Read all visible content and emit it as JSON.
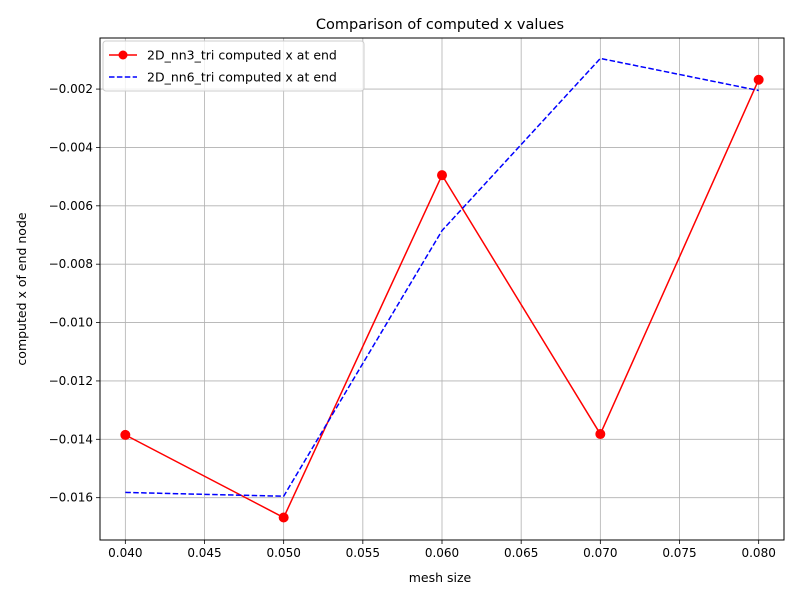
{
  "chart_data": {
    "type": "line",
    "title": "Comparison of computed x values",
    "xlabel": "mesh size",
    "ylabel": "computed x of end node",
    "x": [
      0.04,
      0.05,
      0.06,
      0.07,
      0.08
    ],
    "xlim": [
      0.0384,
      0.0816
    ],
    "ylim": [
      -0.01745,
      -0.00025
    ],
    "x_ticks": [
      "0.040",
      "0.045",
      "0.050",
      "0.055",
      "0.060",
      "0.065",
      "0.070",
      "0.075",
      "0.080"
    ],
    "y_ticks": [
      "−0.016",
      "−0.014",
      "−0.012",
      "−0.010",
      "−0.008",
      "−0.006",
      "−0.004",
      "−0.002"
    ],
    "grid": true,
    "legend_position": "upper-left",
    "series": [
      {
        "name": "2D_nn3_tri computed x at end",
        "values": [
          -0.01385,
          -0.01668,
          -0.00495,
          -0.01382,
          -0.00168
        ],
        "color": "#ff0000",
        "style": "solid",
        "marker": "circle"
      },
      {
        "name": "2D_nn6_tri computed x at end",
        "values": [
          -0.01582,
          -0.01595,
          -0.00685,
          -0.00095,
          -0.00205
        ],
        "color": "#0000ff",
        "style": "dashed",
        "marker": "none"
      }
    ]
  }
}
